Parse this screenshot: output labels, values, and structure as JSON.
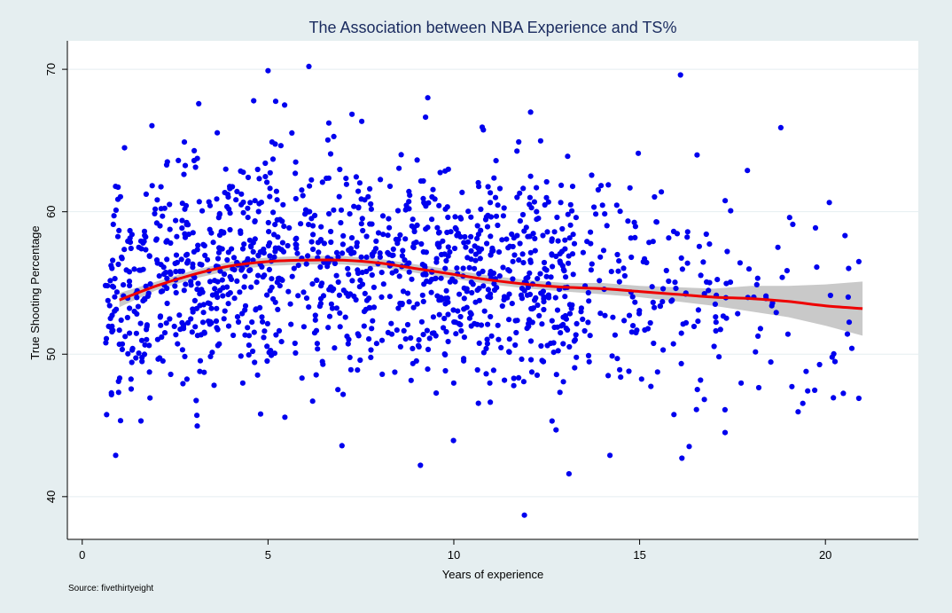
{
  "chart_data": {
    "type": "scatter",
    "title": "The Association between NBA Experience and TS%",
    "xlabel": "Years of experience",
    "ylabel": "True Shooting Percentage",
    "source": "Source: fivethirtyeight",
    "xlim": [
      -0.4,
      22.5
    ],
    "ylim": [
      37,
      72
    ],
    "xticks": [
      0,
      5,
      10,
      15,
      20
    ],
    "yticks": [
      40,
      50,
      60,
      70
    ],
    "grid": "horizontal",
    "colors": {
      "background": "#e5eef0",
      "plot_background": "#ffffff",
      "points": "#0000ee",
      "fit_line": "#ee0000",
      "confidence_band": "#c0c0c0",
      "grid": "#e5eef0"
    },
    "scatter_points_count": 1400,
    "notable_points": [
      {
        "x": 5.0,
        "y": 69.9
      },
      {
        "x": 6.1,
        "y": 70.2
      },
      {
        "x": 16.1,
        "y": 69.6
      },
      {
        "x": 18.8,
        "y": 65.9
      },
      {
        "x": 9.3,
        "y": 68.0
      },
      {
        "x": 0.9,
        "y": 42.9
      },
      {
        "x": 9.1,
        "y": 42.2
      },
      {
        "x": 11.9,
        "y": 38.7
      },
      {
        "x": 13.1,
        "y": 41.6
      },
      {
        "x": 14.2,
        "y": 42.9
      },
      {
        "x": 17.3,
        "y": 44.5
      },
      {
        "x": 20.9,
        "y": 46.9
      },
      {
        "x": 20.9,
        "y": 56.5
      },
      {
        "x": 4.8,
        "y": 45.8
      },
      {
        "x": 6.2,
        "y": 46.7
      }
    ],
    "fit": {
      "x": [
        1.0,
        2.0,
        3.0,
        4.0,
        5.0,
        6.0,
        7.0,
        8.0,
        9.0,
        10.0,
        11.0,
        12.0,
        13.0,
        14.0,
        15.0,
        16.0,
        17.0,
        18.0,
        19.0,
        20.0,
        21.0
      ],
      "y": [
        53.8,
        54.8,
        55.6,
        56.2,
        56.5,
        56.6,
        56.6,
        56.4,
        56.0,
        55.6,
        55.2,
        54.9,
        54.7,
        54.6,
        54.4,
        54.2,
        54.0,
        53.9,
        53.7,
        53.4,
        53.2
      ],
      "lower": [
        53.3,
        54.5,
        55.3,
        55.9,
        56.2,
        56.3,
        56.3,
        56.1,
        55.7,
        55.3,
        54.9,
        54.6,
        54.4,
        54.2,
        54.0,
        53.7,
        53.4,
        53.0,
        52.6,
        52.0,
        51.3
      ],
      "upper": [
        54.3,
        55.1,
        55.9,
        56.5,
        56.8,
        56.9,
        56.9,
        56.7,
        56.3,
        55.9,
        55.5,
        55.2,
        55.0,
        55.0,
        54.8,
        54.7,
        54.6,
        54.8,
        54.8,
        54.9,
        55.1
      ]
    }
  }
}
